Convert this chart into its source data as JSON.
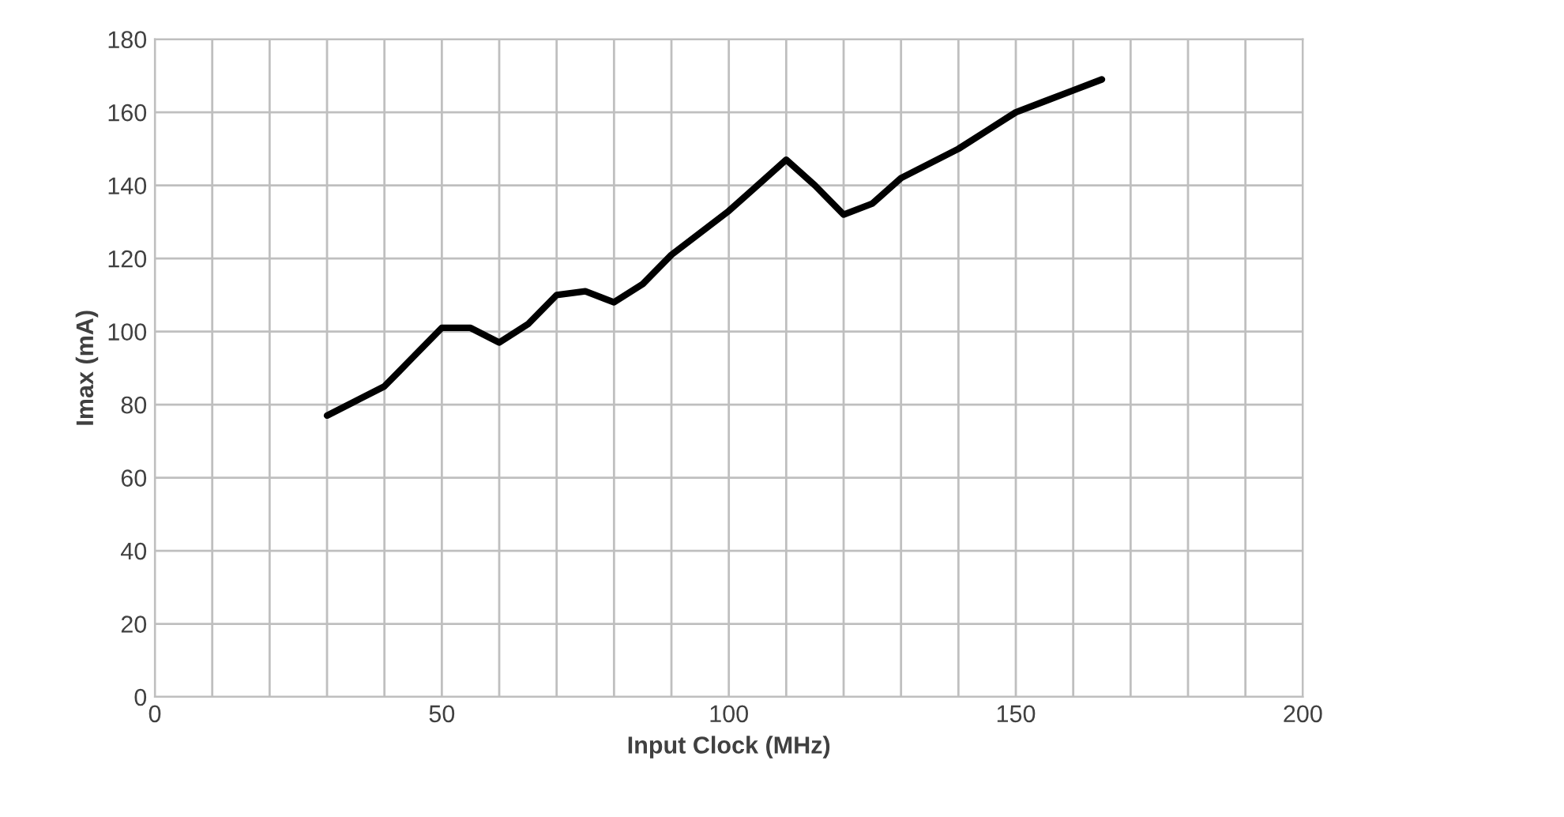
{
  "chart_data": {
    "type": "line",
    "xlabel": "Input Clock (MHz)",
    "ylabel": "Imax (mA)",
    "xlim": [
      0,
      200
    ],
    "ylim": [
      0,
      180
    ],
    "xticks": [
      0,
      {
        "value": 10,
        "label": null
      },
      {
        "value": 20,
        "label": null
      },
      {
        "value": 30,
        "label": null
      },
      {
        "value": 40,
        "label": null
      },
      50,
      {
        "value": 60,
        "label": null
      },
      {
        "value": 70,
        "label": null
      },
      {
        "value": 80,
        "label": null
      },
      {
        "value": 90,
        "label": null
      },
      100,
      {
        "value": 110,
        "label": null
      },
      {
        "value": 120,
        "label": null
      },
      {
        "value": 130,
        "label": null
      },
      {
        "value": 140,
        "label": null
      },
      150,
      {
        "value": 160,
        "label": null
      },
      {
        "value": 170,
        "label": null
      },
      {
        "value": 180,
        "label": null
      },
      {
        "value": 190,
        "label": null
      },
      200
    ],
    "yticks": [
      0,
      20,
      40,
      60,
      80,
      100,
      120,
      140,
      160,
      180
    ],
    "grid": true,
    "marker": "none",
    "line_style": "solid",
    "series": [
      {
        "color": "#000000",
        "x": [
          30,
          35,
          40,
          45,
          50,
          55,
          60,
          65,
          70,
          75,
          80,
          85,
          90,
          95,
          100,
          105,
          110,
          115,
          120,
          125,
          130,
          135,
          140,
          145,
          150,
          155,
          160,
          165
        ],
        "values": [
          77,
          81,
          85,
          93,
          101,
          101,
          97,
          102,
          110,
          111,
          108,
          113,
          121,
          127,
          133,
          140,
          147,
          140,
          132,
          135,
          142,
          146,
          150,
          155,
          160,
          163,
          166,
          169
        ]
      }
    ]
  }
}
